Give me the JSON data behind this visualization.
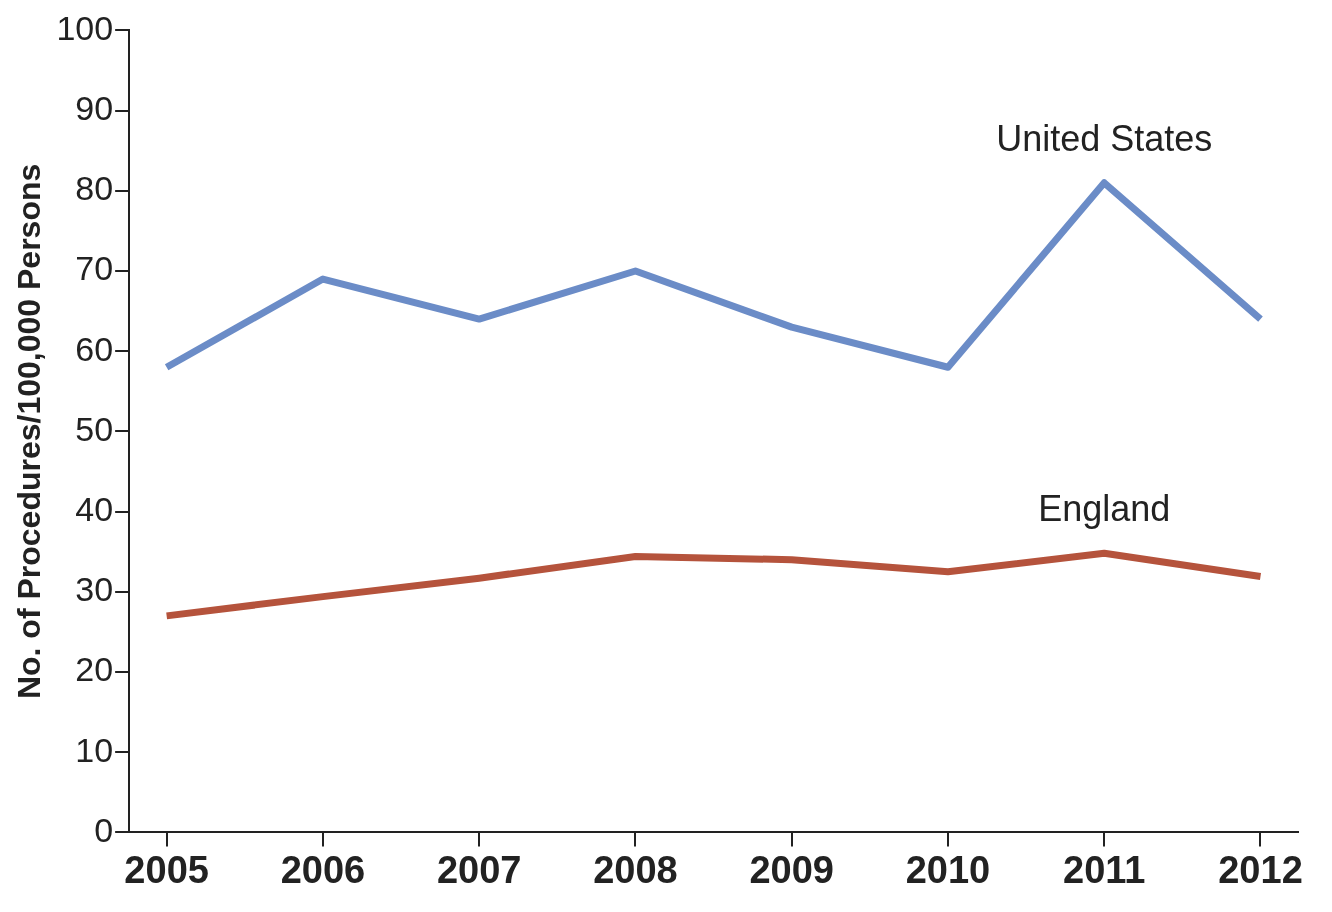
{
  "chart_data": {
    "type": "line",
    "ylabel": "No. of Procedures/100,000 Persons",
    "x": [
      2005,
      2006,
      2007,
      2008,
      2009,
      2010,
      2011,
      2012
    ],
    "xlim": [
      2004.76,
      2012.24
    ],
    "xticks": [
      2005,
      2006,
      2007,
      2008,
      2009,
      2010,
      2011,
      2012
    ],
    "ylim": [
      0,
      100
    ],
    "yticks": [
      0,
      10,
      20,
      30,
      40,
      50,
      60,
      70,
      80,
      90,
      100
    ],
    "series": [
      {
        "name": "United States",
        "color": "#6b8cc7",
        "values": [
          58,
          69,
          64,
          70,
          63,
          58,
          81,
          64
        ]
      },
      {
        "name": "England",
        "color": "#b5533c",
        "values": [
          27,
          29.4,
          31.7,
          34.4,
          34,
          32.5,
          34.8,
          31.9
        ]
      }
    ],
    "grid": false,
    "legend": false,
    "marker": "none",
    "line_style": "solid"
  }
}
